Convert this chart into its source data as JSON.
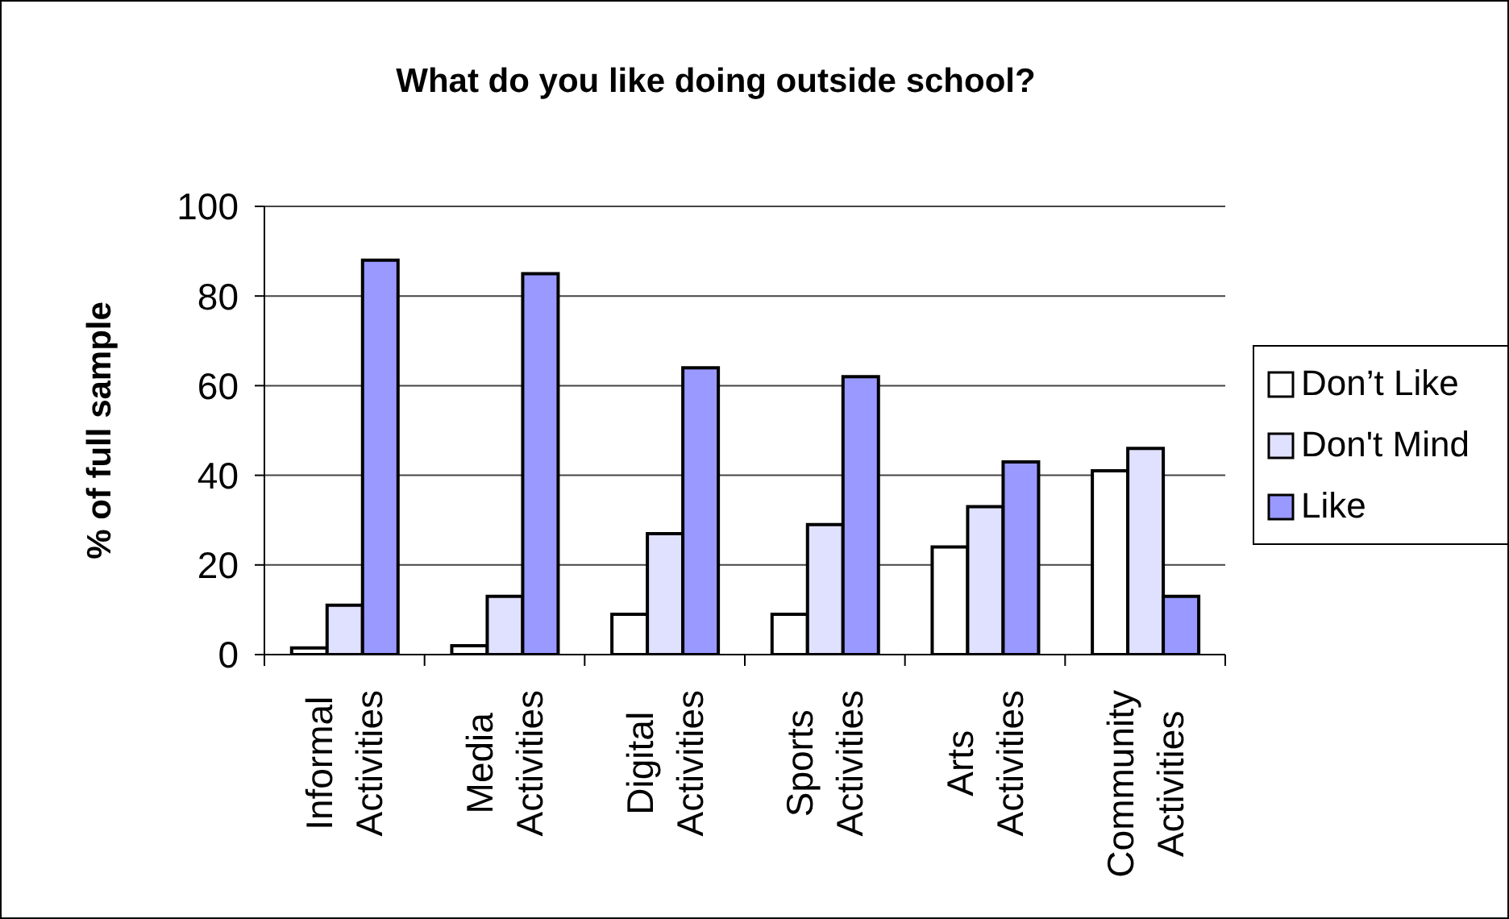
{
  "chart_data": {
    "type": "bar",
    "title": "What do you like doing outside school?",
    "ylabel": "% of full sample",
    "categories": [
      "Informal Activities",
      "Media Activities",
      "Digital Activities",
      "Sports Activities",
      "Arts Activities",
      "Community Activities"
    ],
    "series": [
      {
        "name": "Don’t Like",
        "color": "#ffffff",
        "values": [
          1.5,
          2,
          9,
          9,
          24,
          41
        ]
      },
      {
        "name": "Don't Mind",
        "color": "#e0e0ff",
        "values": [
          11,
          13,
          27,
          29,
          33,
          46
        ]
      },
      {
        "name": "Like",
        "color": "#9999ff",
        "values": [
          88,
          85,
          64,
          62,
          43,
          13
        ]
      }
    ],
    "ylim": [
      0,
      100
    ],
    "yticks": [
      0,
      20,
      40,
      60,
      80,
      100
    ],
    "grid": "y",
    "legend": "right"
  }
}
